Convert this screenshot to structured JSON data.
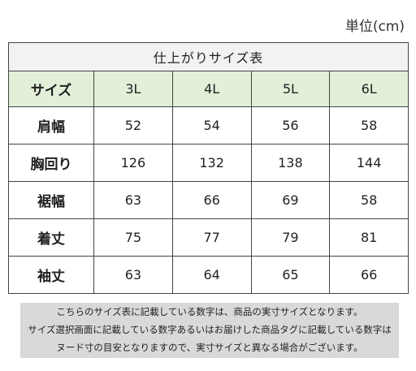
{
  "unit_label": "単位(cm)",
  "table": {
    "caption": "仕上がりサイズ表",
    "header_label": "サイズ",
    "sizes": [
      "3L",
      "4L",
      "5L",
      "6L"
    ],
    "rows": [
      {
        "label": "肩幅",
        "values": [
          "52",
          "54",
          "56",
          "58"
        ]
      },
      {
        "label": "胸回り",
        "values": [
          "126",
          "132",
          "138",
          "144"
        ]
      },
      {
        "label": "裾幅",
        "values": [
          "63",
          "66",
          "69",
          "58"
        ]
      },
      {
        "label": "着丈",
        "values": [
          "75",
          "77",
          "79",
          "81"
        ]
      },
      {
        "label": "袖丈",
        "values": [
          "63",
          "64",
          "65",
          "66"
        ]
      }
    ]
  },
  "note": {
    "lines": [
      "こちらのサイズ表に記載している数字は、商品の実寸サイズとなります。",
      "サイズ選択画面に記載している数字あるいはお届けした商品タグに記載している数字は",
      "ヌード寸の目安となりますので、実寸サイズと異なる場合がございます。"
    ]
  },
  "colors": {
    "header_bg": "#e2efd9",
    "caption_bg": "#f2f2f2",
    "note_bg": "#d9d9d9"
  }
}
